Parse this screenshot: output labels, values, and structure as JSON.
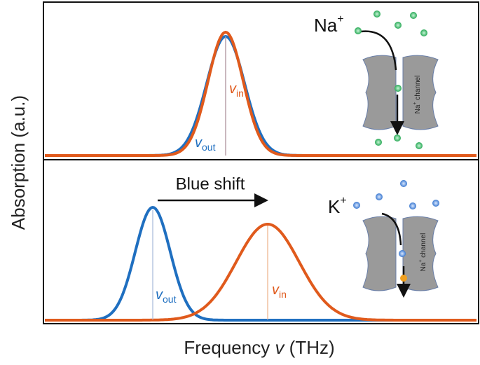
{
  "axes": {
    "y_label": "Absorption (a.u.)",
    "x_label_text": "Frequency ",
    "x_label_symbol": "v",
    "x_label_unit": " (THz)"
  },
  "panels": [
    {
      "ion": "Na",
      "ion_charge": "+",
      "channel_ion": "Na",
      "channel_charge": "+",
      "channel_text": " channel",
      "out_symbol": "v",
      "out_sub": "out",
      "in_symbol": "v",
      "in_sub": "in"
    },
    {
      "ion": "K",
      "ion_charge": "+",
      "channel_ion": "Na",
      "channel_charge": "+",
      "channel_text": " channel",
      "out_symbol": "v",
      "out_sub": "out",
      "in_symbol": "v",
      "in_sub": "in",
      "shift_label": "Blue shift"
    }
  ]
}
